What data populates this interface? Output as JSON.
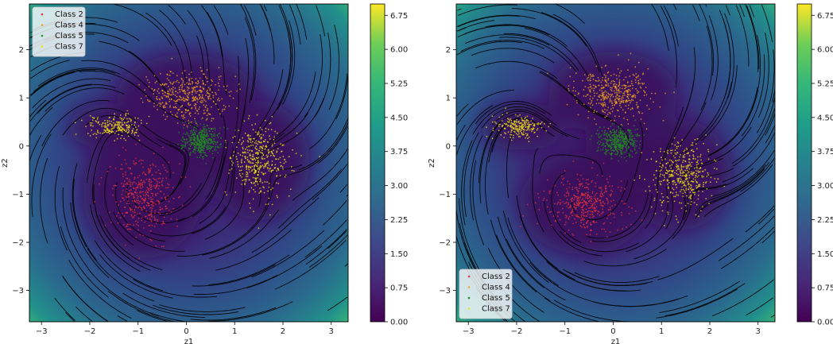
{
  "chart_data": [
    {
      "type": "scatter",
      "title": "",
      "xlabel": "z1",
      "ylabel": "z2",
      "xlim": [
        -3.25,
        3.35
      ],
      "ylim": [
        -3.65,
        2.95
      ],
      "xticks": [
        -3,
        -2,
        -1,
        0,
        1,
        2,
        3
      ],
      "yticks": [
        -3,
        -2,
        -1,
        0,
        1,
        2
      ],
      "legend_position": "top-left",
      "background": "density heatmap with black streamlines",
      "colorbar": {
        "range": [
          0.0,
          7.0
        ],
        "ticks": [
          "0.00",
          "0.75",
          "1.50",
          "2.25",
          "3.00",
          "3.75",
          "4.50",
          "5.25",
          "6.00",
          "6.75"
        ],
        "colormap": "viridis"
      },
      "series": [
        {
          "name": "Class 2",
          "color": "#e8323c",
          "center": [
            -0.9,
            -1.0
          ],
          "spread": [
            0.65,
            0.7
          ]
        },
        {
          "name": "Class 4",
          "color": "#f3a51e",
          "center": [
            0.0,
            1.05
          ],
          "spread": [
            0.75,
            0.45
          ]
        },
        {
          "name": "Class 5",
          "color": "#1f8e1f",
          "center": [
            0.3,
            0.1
          ],
          "spread": [
            0.35,
            0.3
          ]
        },
        {
          "name": "Class 7",
          "color": "#f2e416",
          "center": [
            1.5,
            -0.3
          ],
          "spread": [
            0.55,
            0.65
          ]
        }
      ],
      "extra_clusters": [
        {
          "series": "Class 7",
          "center": [
            -1.5,
            0.4
          ],
          "spread": [
            0.5,
            0.2
          ]
        }
      ]
    },
    {
      "type": "scatter",
      "title": "",
      "xlabel": "z1",
      "ylabel": "z2",
      "xlim": [
        -3.25,
        3.35
      ],
      "ylim": [
        -3.65,
        2.95
      ],
      "xticks": [
        -3,
        -2,
        -1,
        0,
        1,
        2,
        3
      ],
      "yticks": [
        -3,
        -2,
        -1,
        0,
        1,
        2
      ],
      "legend_position": "bottom-left",
      "background": "density heatmap with black streamlines",
      "colorbar": {
        "range": [
          0.0,
          7.0
        ],
        "ticks": [
          "0.00",
          "0.75",
          "1.50",
          "2.25",
          "3.00",
          "3.75",
          "4.50",
          "5.25",
          "6.00",
          "6.75"
        ],
        "colormap": "viridis"
      },
      "series": [
        {
          "name": "Class 2",
          "color": "#e8323c",
          "center": [
            -0.6,
            -1.2
          ],
          "spread": [
            0.7,
            0.55
          ]
        },
        {
          "name": "Class 4",
          "color": "#f3a51e",
          "center": [
            0.0,
            1.1
          ],
          "spread": [
            0.7,
            0.45
          ]
        },
        {
          "name": "Class 5",
          "color": "#1f8e1f",
          "center": [
            0.1,
            0.1
          ],
          "spread": [
            0.35,
            0.28
          ]
        },
        {
          "name": "Class 7",
          "color": "#f2e416",
          "center": [
            1.4,
            -0.6
          ],
          "spread": [
            0.55,
            0.6
          ]
        }
      ],
      "extra_clusters": [
        {
          "series": "Class 7",
          "center": [
            -1.9,
            0.4
          ],
          "spread": [
            0.45,
            0.2
          ]
        }
      ]
    }
  ]
}
